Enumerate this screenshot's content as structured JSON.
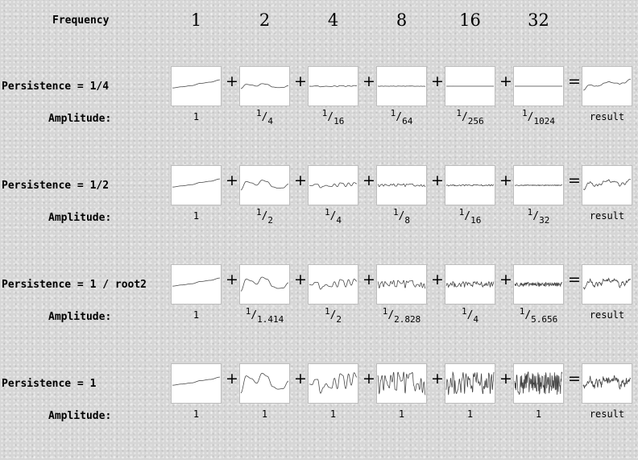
{
  "header": {
    "label": "Frequency",
    "frequencies": [
      "1",
      "2",
      "4",
      "8",
      "16",
      "32"
    ]
  },
  "amplitude_label": "Amplitude:",
  "operators": {
    "plus": "+",
    "equals": "="
  },
  "result_label": "result",
  "rows": [
    {
      "persistence": "Persistence = 1/4",
      "amplitudes": [
        {
          "num": "1"
        },
        {
          "num": "1",
          "den": "4"
        },
        {
          "num": "1",
          "den": "16"
        },
        {
          "num": "1",
          "den": "64"
        },
        {
          "num": "1",
          "den": "256"
        },
        {
          "num": "1",
          "den": "1024"
        }
      ],
      "octave_amplitudes": [
        1,
        0.25,
        0.0625,
        0.015625,
        0.00390625,
        0.0009765625
      ]
    },
    {
      "persistence": "Persistence = 1/2",
      "amplitudes": [
        {
          "num": "1"
        },
        {
          "num": "1",
          "den": "2"
        },
        {
          "num": "1",
          "den": "4"
        },
        {
          "num": "1",
          "den": "8"
        },
        {
          "num": "1",
          "den": "16"
        },
        {
          "num": "1",
          "den": "32"
        }
      ],
      "octave_amplitudes": [
        1,
        0.5,
        0.25,
        0.125,
        0.0625,
        0.03125
      ]
    },
    {
      "persistence": "Persistence = 1 / root2",
      "amplitudes": [
        {
          "num": "1"
        },
        {
          "num": "1",
          "den": "1.414"
        },
        {
          "num": "1",
          "den": "2"
        },
        {
          "num": "1",
          "den": "2.828"
        },
        {
          "num": "1",
          "den": "4"
        },
        {
          "num": "1",
          "den": "5.656"
        }
      ],
      "octave_amplitudes": [
        1,
        0.7071,
        0.5,
        0.3536,
        0.25,
        0.1768
      ]
    },
    {
      "persistence": "Persistence = 1",
      "amplitudes": [
        {
          "num": "1"
        },
        {
          "num": "1"
        },
        {
          "num": "1"
        },
        {
          "num": "1"
        },
        {
          "num": "1"
        },
        {
          "num": "1"
        }
      ],
      "octave_amplitudes": [
        1,
        1,
        1,
        1,
        1,
        1
      ]
    }
  ]
}
